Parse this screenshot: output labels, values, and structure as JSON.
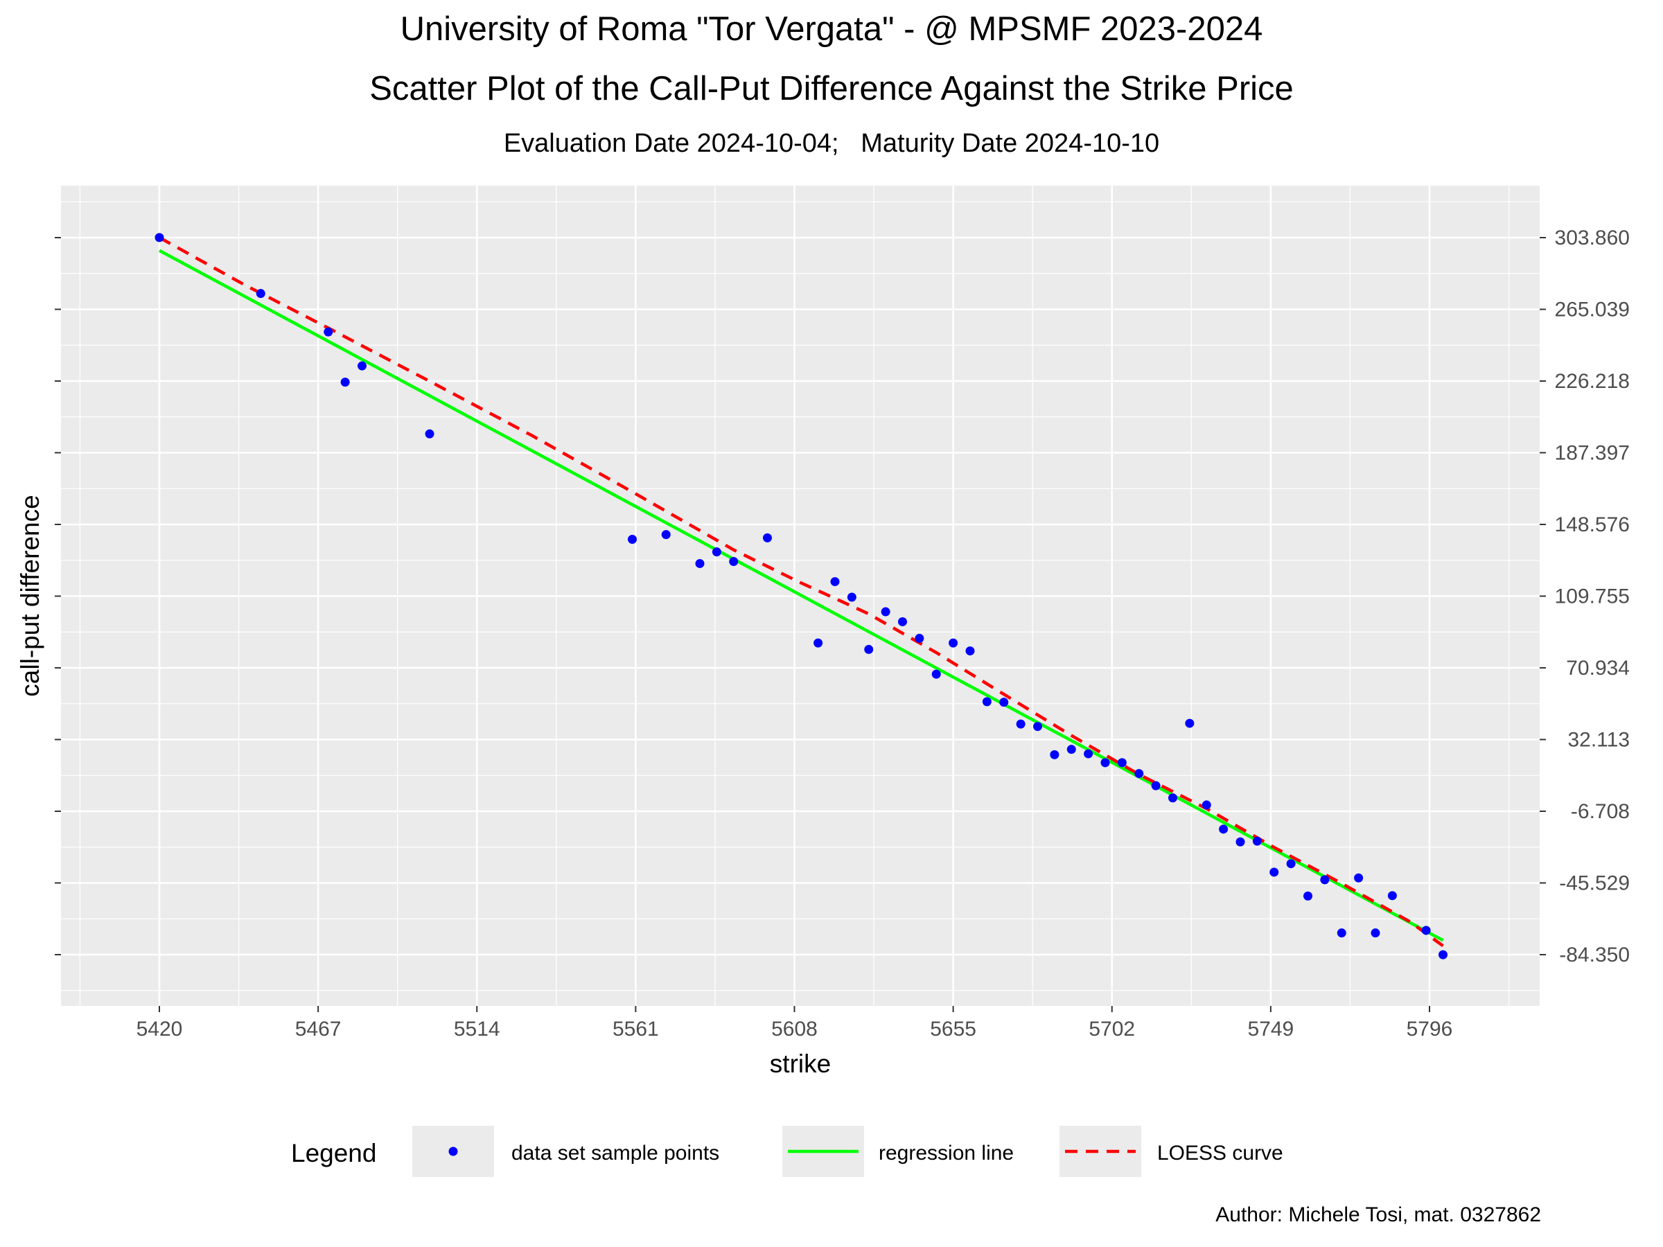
{
  "title": "University of Roma \"Tor Vergata\" - @ MPSMF 2023-2024",
  "subtitle": "Scatter Plot of the Call-Put Difference Against the Strike Price",
  "subsubtitle": "Evaluation Date 2024-10-04;   Maturity Date 2024-10-10",
  "author": "Author: Michele Tosi, mat. 0327862",
  "colors": {
    "panel": "#ebebeb",
    "grid": "#ffffff",
    "points": "#0000ff",
    "regression": "#00ff00",
    "loess": "#ff0000"
  },
  "chart_data": {
    "type": "scatter",
    "xlabel": "strike",
    "ylabel": "call-put difference",
    "xlim": [
      5406,
      5838
    ],
    "ylim": [
      -105,
      335
    ],
    "x_ticks": [
      5420,
      5467,
      5514,
      5561,
      5608,
      5655,
      5702,
      5749,
      5796
    ],
    "x_tick_labels": [
      "5420",
      "5467",
      "5514",
      "5561",
      "5608",
      "5655",
      "5702",
      "5749",
      "5796"
    ],
    "y_ticks": [
      303.86,
      265.039,
      226.218,
      187.397,
      148.576,
      109.755,
      70.934,
      32.113,
      -6.708,
      -45.529,
      -84.35
    ],
    "y_tick_labels": [
      "303.860",
      "265.039",
      "226.218",
      "187.397",
      "148.576",
      "109.755",
      "70.934",
      "32.113",
      "-6.708",
      "-45.529",
      "-84.350"
    ],
    "y_axis_position": "both",
    "grid": true,
    "legend": {
      "title": "Legend",
      "position": "bottom",
      "entries": [
        "data set sample points",
        "regression line",
        "LOESS curve"
      ]
    },
    "series": [
      {
        "name": "data set sample points",
        "kind": "points",
        "points": [
          [
            5420,
            303.9
          ],
          [
            5450,
            273.6
          ],
          [
            5470,
            252.8
          ],
          [
            5475,
            225.6
          ],
          [
            5480,
            234.4
          ],
          [
            5500,
            197.6
          ],
          [
            5560,
            140.5
          ],
          [
            5570,
            143.1
          ],
          [
            5580,
            127.4
          ],
          [
            5585,
            133.7
          ],
          [
            5590,
            128.5
          ],
          [
            5600,
            141.3
          ],
          [
            5615,
            84.4
          ],
          [
            5620,
            117.6
          ],
          [
            5625,
            109.2
          ],
          [
            5630,
            80.9
          ],
          [
            5635,
            101.3
          ],
          [
            5640,
            95.9
          ],
          [
            5645,
            86.9
          ],
          [
            5650,
            67.5
          ],
          [
            5655,
            84.4
          ],
          [
            5660,
            80.1
          ],
          [
            5665,
            52.6
          ],
          [
            5670,
            52.3
          ],
          [
            5675,
            40.5
          ],
          [
            5680,
            39.2
          ],
          [
            5685,
            23.9
          ],
          [
            5690,
            26.8
          ],
          [
            5695,
            24.4
          ],
          [
            5700,
            19.6
          ],
          [
            5705,
            19.6
          ],
          [
            5710,
            13.7
          ],
          [
            5715,
            7.1
          ],
          [
            5720,
            0.5
          ],
          [
            5725,
            40.9
          ],
          [
            5730,
            -3.3
          ],
          [
            5735,
            -16.4
          ],
          [
            5740,
            -23.3
          ],
          [
            5745,
            -22.9
          ],
          [
            5750,
            -39.7
          ],
          [
            5755,
            -35.1
          ],
          [
            5760,
            -52.6
          ],
          [
            5765,
            -43.8
          ],
          [
            5770,
            -72.6
          ],
          [
            5775,
            -42.8
          ],
          [
            5780,
            -72.6
          ],
          [
            5785,
            -52.4
          ],
          [
            5795,
            -71.2
          ],
          [
            5800,
            -84.4
          ]
        ]
      },
      {
        "name": "regression line",
        "kind": "line",
        "points": [
          [
            5420,
            296.9
          ],
          [
            5800,
            -76.6
          ]
        ]
      },
      {
        "name": "LOESS curve",
        "kind": "dashed-line",
        "points": [
          [
            5420,
            303.9
          ],
          [
            5445,
            278.5
          ],
          [
            5470,
            254.9
          ],
          [
            5500,
            226.1
          ],
          [
            5530,
            197.0
          ],
          [
            5560,
            166.2
          ],
          [
            5590,
            134.8
          ],
          [
            5610,
            116.9
          ],
          [
            5630,
            100.1
          ],
          [
            5650,
            79.2
          ],
          [
            5670,
            56.6
          ],
          [
            5690,
            34.3
          ],
          [
            5710,
            13.2
          ],
          [
            5730,
            -5.3
          ],
          [
            5750,
            -26.3
          ],
          [
            5770,
            -45.8
          ],
          [
            5790,
            -66.3
          ],
          [
            5800,
            -79.6
          ]
        ]
      }
    ]
  }
}
